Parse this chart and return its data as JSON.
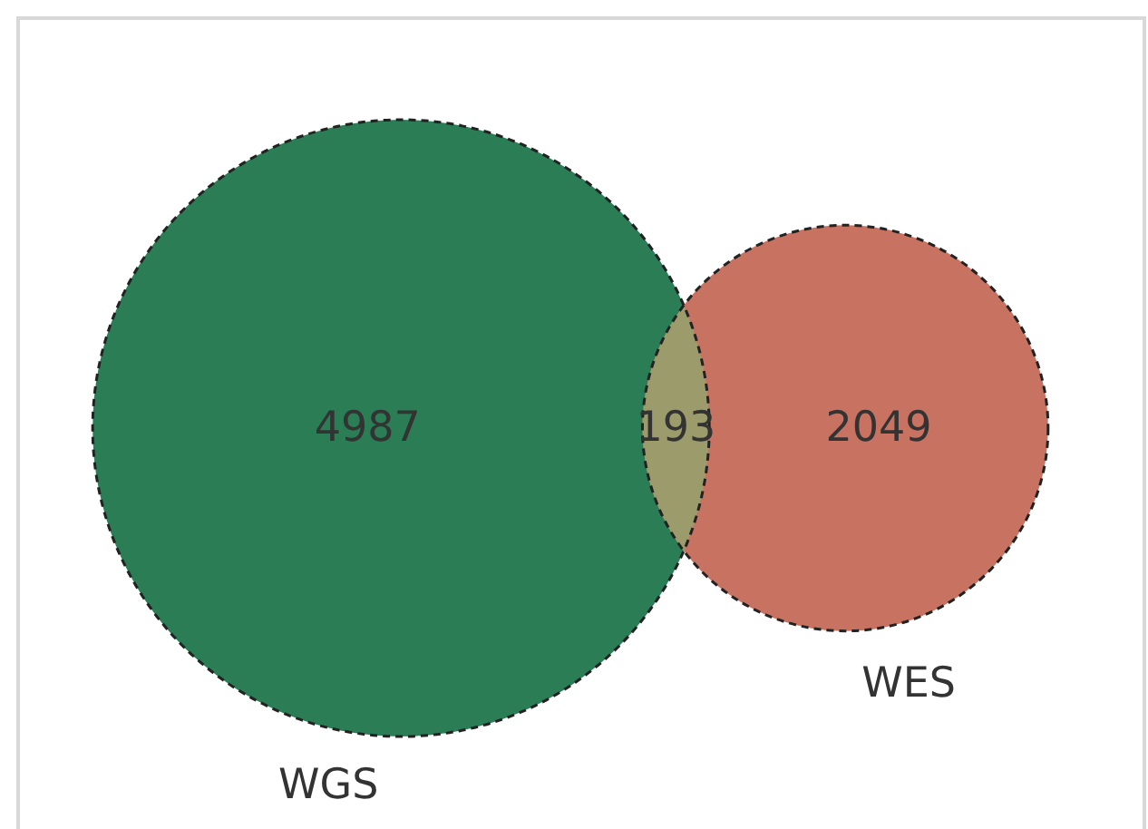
{
  "chart_data": {
    "type": "other",
    "categories": [
      "WGS",
      null,
      "WES"
    ],
    "values": [
      4987,
      193,
      2049
    ],
    "colors": [
      "#2a7d54",
      "#9c9b6b",
      "#c87262"
    ],
    "data_labels": true
  }
}
